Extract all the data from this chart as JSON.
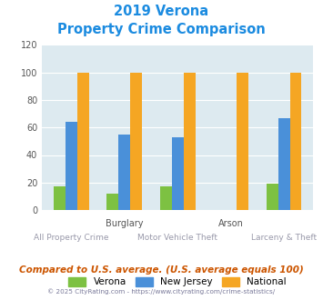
{
  "title_line1": "2019 Verona",
  "title_line2": "Property Crime Comparison",
  "title_color": "#1b8be0",
  "categories": [
    "All Property Crime",
    "Burglary",
    "Motor Vehicle Theft",
    "Arson",
    "Larceny & Theft"
  ],
  "cat_top": [
    "",
    "Burglary",
    "",
    "Arson",
    ""
  ],
  "cat_bottom": [
    "All Property Crime",
    "",
    "Motor Vehicle Theft",
    "",
    "Larceny & Theft"
  ],
  "verona": [
    17,
    12,
    17,
    0,
    19
  ],
  "new_jersey": [
    64,
    55,
    53,
    0,
    67
  ],
  "national": [
    100,
    100,
    100,
    100,
    100
  ],
  "verona_color": "#7dc142",
  "nj_color": "#4a90d9",
  "national_color": "#f5a623",
  "bg_color": "#ddeaf0",
  "ylim": [
    0,
    120
  ],
  "yticks": [
    0,
    20,
    40,
    60,
    80,
    100,
    120
  ],
  "bar_width": 0.22,
  "footnote": "Compared to U.S. average. (U.S. average equals 100)",
  "footnote_color": "#cc5500",
  "copyright": "© 2025 CityRating.com - https://www.cityrating.com/crime-statistics/",
  "copyright_color": "#7a7a9a"
}
